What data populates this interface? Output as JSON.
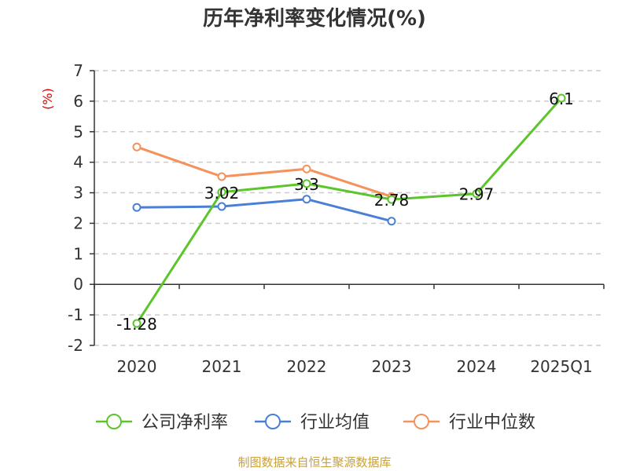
{
  "chart_data": {
    "type": "line",
    "title": "历年净利率变化情况(%)",
    "ylabel": "(%)",
    "categories": [
      "2020",
      "2021",
      "2022",
      "2023",
      "2024",
      "2025Q1"
    ],
    "y_ticks": [
      "-2",
      "-1",
      "0",
      "1",
      "2",
      "3",
      "4",
      "5",
      "6",
      "7"
    ],
    "ylim": [
      -2,
      7
    ],
    "grid": true,
    "legend_position": "bottom",
    "series": [
      {
        "name": "公司净利率",
        "color": "#5cc52c",
        "values": [
          -1.28,
          3.02,
          3.3,
          2.78,
          2.97,
          6.1
        ],
        "labels": [
          "-1.28",
          "3.02",
          "3.3",
          "2.78",
          "2.97",
          "6.1"
        ]
      },
      {
        "name": "行业均值",
        "color": "#4a7fd6",
        "values": [
          2.52,
          2.55,
          2.79,
          2.07,
          null,
          null
        ]
      },
      {
        "name": "行业中位数",
        "color": "#f5915a",
        "values": [
          4.5,
          3.53,
          3.78,
          2.87,
          null,
          null
        ]
      }
    ]
  },
  "source_text": "制图数据来自恒生聚源数据库",
  "colors": {
    "axis": "#333333",
    "grid": "#cccccc",
    "unit": "#e00000",
    "source": "#c8a03c"
  }
}
